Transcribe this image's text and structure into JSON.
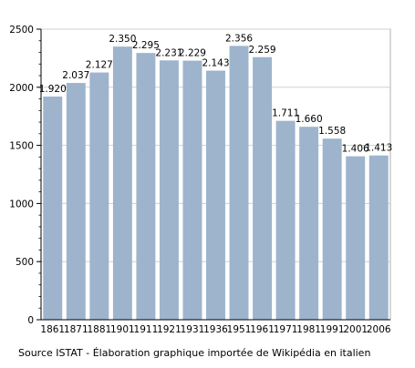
{
  "chart_data": {
    "type": "bar",
    "categories": [
      "1861",
      "1871",
      "1881",
      "1901",
      "1911",
      "1921",
      "1931",
      "1936",
      "1951",
      "1961",
      "1971",
      "1981",
      "1991",
      "2001",
      "2006"
    ],
    "values": [
      1920,
      2037,
      2127,
      2350,
      2295,
      2231,
      2229,
      2143,
      2356,
      2259,
      1711,
      1660,
      1558,
      1406,
      1413
    ],
    "value_labels": [
      "1.920",
      "2.037",
      "2.127",
      "2.350",
      "2.295",
      "2.231",
      "2.229",
      "2.143",
      "2.356",
      "2.259",
      "1.711",
      "1.660",
      "1.558",
      "1.406",
      "1.413"
    ],
    "yticks": [
      "0",
      "500",
      "1000",
      "1500",
      "2000",
      "2500"
    ],
    "ylim": [
      0,
      2500
    ],
    "grid": true,
    "bar_color": "#9db4cc",
    "grid_color": "#d0d0d0"
  },
  "caption": "Source ISTAT - Élaboration graphique importée de Wikipédia en italien"
}
